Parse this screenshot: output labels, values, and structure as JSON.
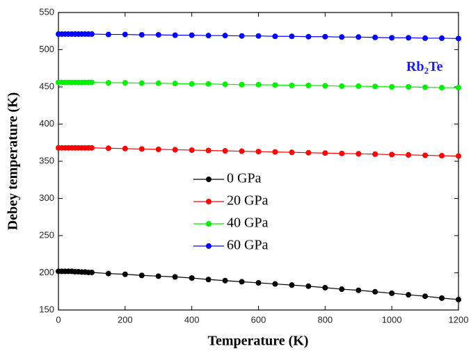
{
  "chart_data": {
    "type": "line",
    "x_label": "Temperature (K)",
    "y_label": "Debey temperature (K)",
    "annotation": [
      "Rb",
      "2",
      "Te"
    ],
    "annotation_color": "#1a1aff",
    "x": [
      0,
      10,
      20,
      30,
      40,
      50,
      60,
      70,
      80,
      90,
      100,
      150,
      200,
      250,
      300,
      350,
      400,
      450,
      500,
      550,
      600,
      650,
      700,
      750,
      800,
      850,
      900,
      950,
      1000,
      1050,
      1100,
      1150,
      1200
    ],
    "series": [
      {
        "name": "0 GPa",
        "color": "#000000",
        "values": [
          202,
          202,
          202,
          202,
          202,
          201.5,
          201.5,
          201,
          201,
          200.5,
          200.5,
          199,
          198,
          196.5,
          195.5,
          194.5,
          193,
          191,
          189.5,
          188,
          186.5,
          185,
          183.5,
          182,
          180,
          178,
          176.5,
          174.5,
          172.5,
          170.5,
          168.5,
          166,
          164
        ]
      },
      {
        "name": "20 GPa",
        "color": "#ff0000",
        "values": [
          368,
          368,
          368,
          368,
          368,
          368,
          368,
          368,
          368,
          368,
          368,
          367.5,
          367,
          366.5,
          366,
          365.5,
          365,
          364.5,
          364,
          363.5,
          363,
          362.5,
          362,
          361.5,
          361,
          360.5,
          360,
          359.5,
          359,
          358.5,
          358,
          357.5,
          357
        ]
      },
      {
        "name": "40 GPa",
        "color": "#00ee00",
        "values": [
          456,
          456,
          456,
          456,
          456,
          456,
          456,
          456,
          456,
          456,
          456,
          455.5,
          455.5,
          455,
          455,
          454.5,
          454,
          454,
          453.5,
          453,
          453,
          452.5,
          452,
          452,
          451.5,
          451,
          451,
          450.5,
          450,
          450,
          449.5,
          449,
          449
        ]
      },
      {
        "name": "60 GPa",
        "color": "#0000ff",
        "values": [
          521,
          521,
          521,
          521,
          521,
          521,
          521,
          521,
          521,
          521,
          521,
          520.5,
          520.5,
          520,
          520,
          519.5,
          519.5,
          519,
          519,
          518.5,
          518.5,
          518,
          518,
          517.5,
          517.5,
          517,
          517,
          516.5,
          516,
          516,
          515.5,
          515.5,
          515
        ]
      }
    ],
    "xlim": [
      0,
      1200
    ],
    "xticks": [
      0,
      200,
      400,
      600,
      800,
      1000,
      1200
    ],
    "ylim": [
      150,
      550
    ],
    "yticks": [
      150,
      200,
      250,
      300,
      350,
      400,
      450,
      500,
      550
    ],
    "grid": false
  }
}
